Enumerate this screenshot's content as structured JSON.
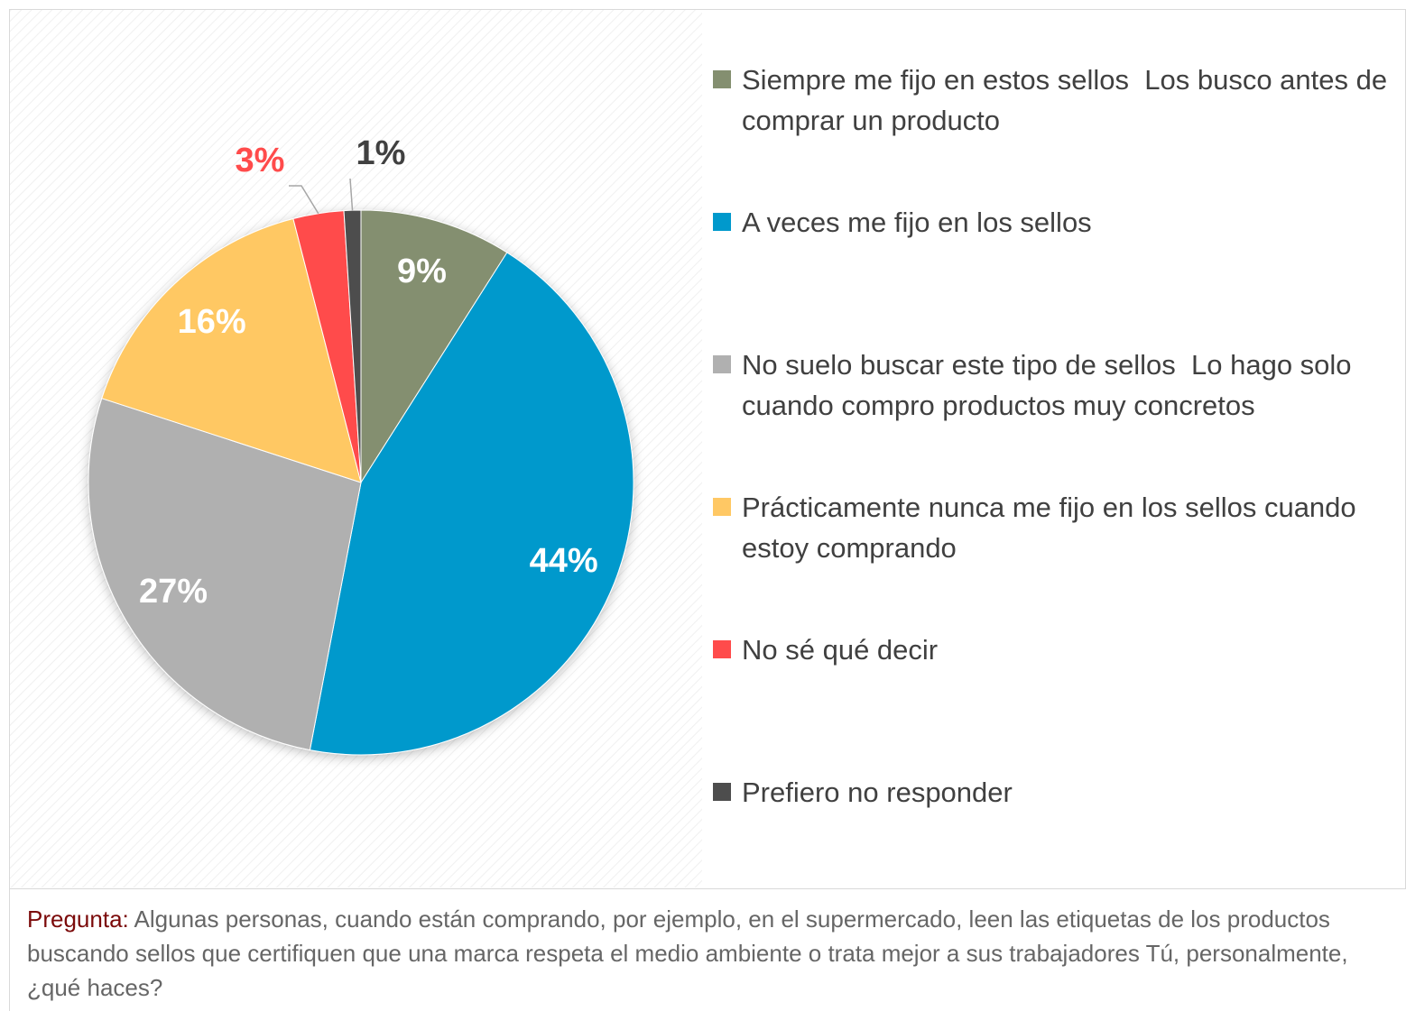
{
  "chart_data": {
    "type": "pie",
    "categories": [
      "Siempre me fijo en estos sellos  Los busco antes de comprar un producto",
      "A veces me fijo en los sellos",
      "No suelo buscar este tipo de sellos  Lo hago solo cuando compro productos muy concretos",
      "Prácticamente nunca me fijo en los sellos cuando estoy comprando",
      "No sé qué decir",
      "Prefiero no responder"
    ],
    "values": [
      9,
      44,
      27,
      16,
      3,
      1
    ],
    "value_labels": [
      "9%",
      "44%",
      "27%",
      "16%",
      "3%",
      "1%"
    ],
    "colors": [
      "#848f70",
      "#0099cc",
      "#b0b0b0",
      "#ffc864",
      "#ff4b4b",
      "#4d4d4d"
    ],
    "legend": "right"
  },
  "caption": {
    "label": "Pregunta:",
    "text": "Algunas personas, cuando están comprando, por ejemplo, en el supermercado, leen las etiquetas de los productos buscando sellos que certifiquen que una marca respeta el medio ambiente o trata mejor a sus trabajadores Tú, personalmente, ¿qué haces?"
  }
}
